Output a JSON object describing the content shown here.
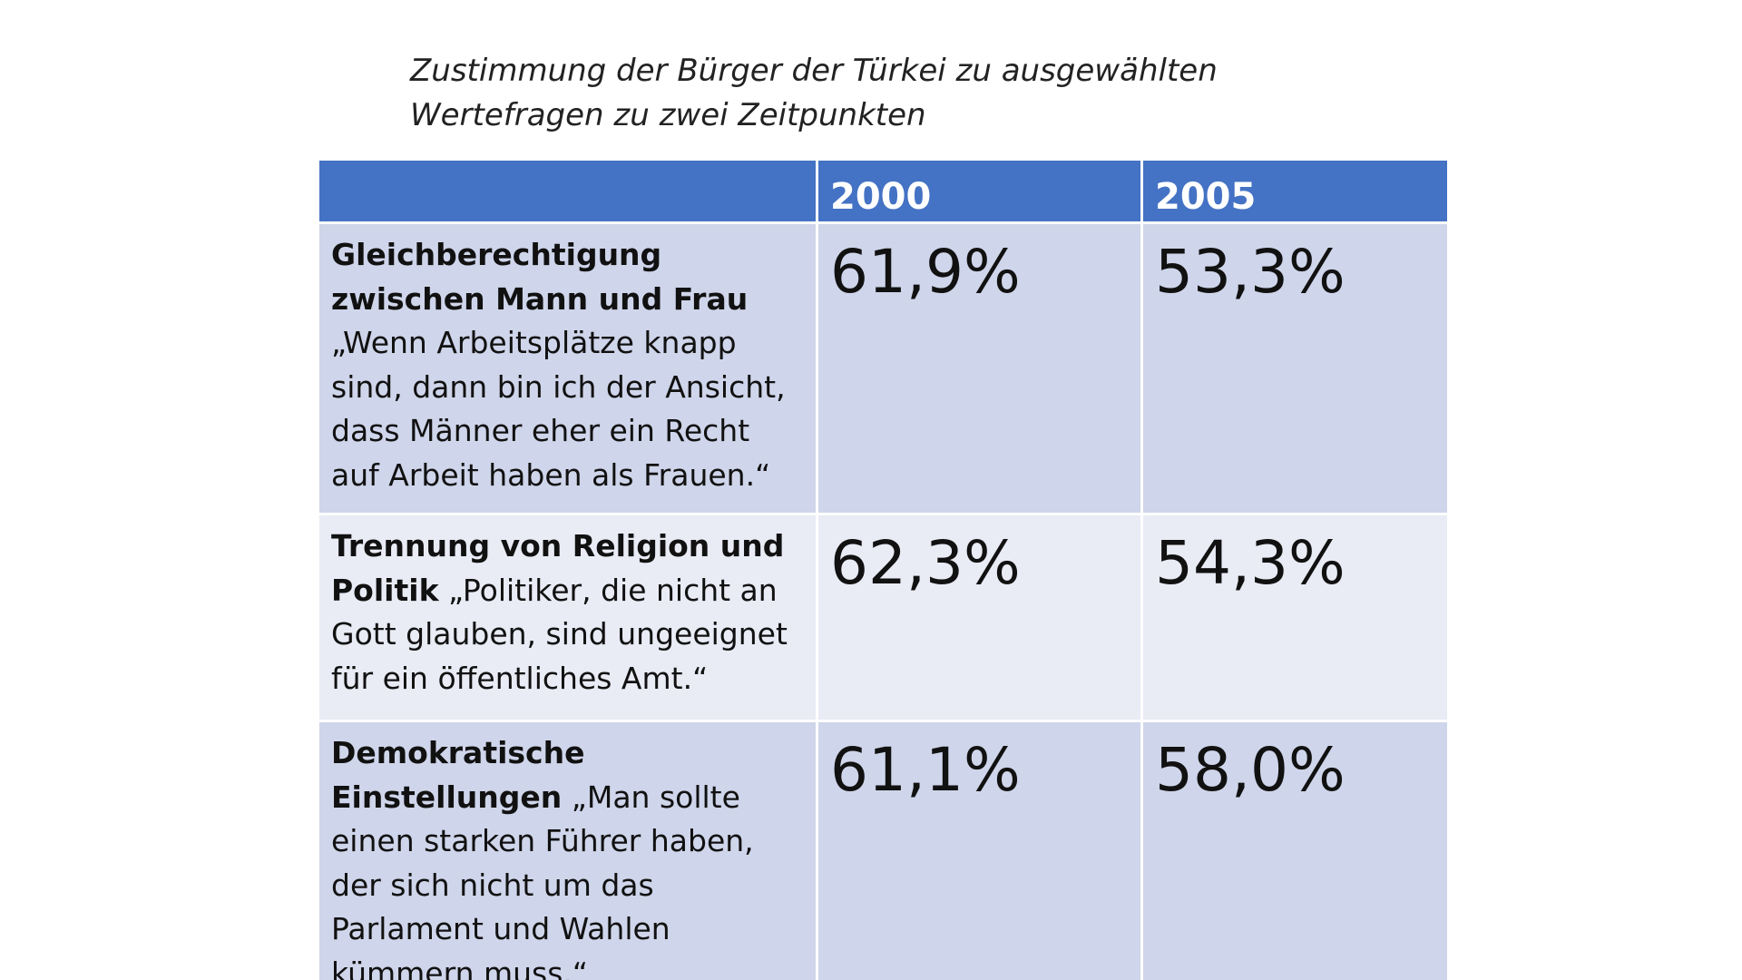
{
  "title": {
    "line1": "Zustimmung der Bürger der Türkei zu ausgewählten",
    "line2": "Wertefragen zu zwei Zeitpunkten"
  },
  "table": {
    "headers": [
      "",
      "2000",
      "2005"
    ],
    "rows": [
      {
        "topic": "Gleichberechtigung zwischen Mann und Frau",
        "statement": "„Wenn Arbeitsplätze knapp sind, dann bin ich der Ansicht, dass Männer eher ein Recht auf Arbeit haben als Frauen.“",
        "v2000": "61,9%",
        "v2005": "53,3%"
      },
      {
        "topic": "Trennung von Religion und Politik",
        "statement": "„Politiker, die nicht an Gott glauben, sind ungeeignet für ein öffentliches Amt.“",
        "v2000": "62,3%",
        "v2005": "54,3%"
      },
      {
        "topic": "Demokratische Einstellungen",
        "statement": "„Man sollte einen starken Führer haben, der sich nicht um das Parlament und Wahlen kümmern muss.“",
        "v2000": "61,1%",
        "v2005": "58,0%"
      }
    ]
  },
  "colors": {
    "header_bg": "#4472c4",
    "row_dark": "#cfd5ea",
    "row_light": "#e9ebf5"
  }
}
